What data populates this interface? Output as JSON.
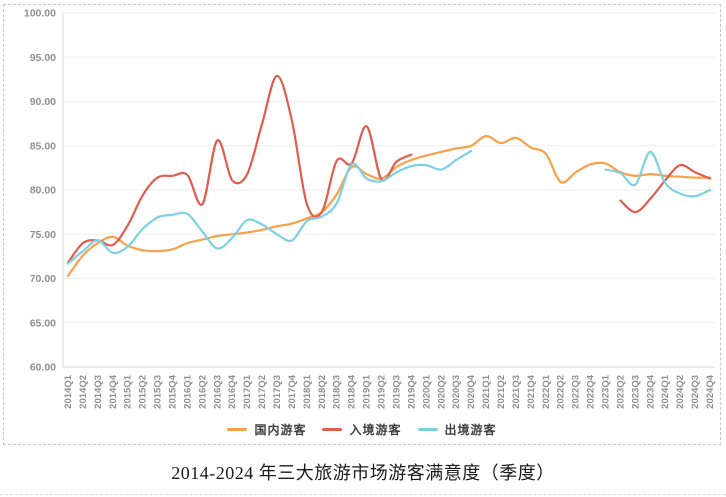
{
  "figure": {
    "caption": "2014-2024 年三大旅游市场游客满意度（季度）"
  },
  "chart_data": {
    "type": "line",
    "title": "2014-2024 年三大旅游市场游客满意度（季度）",
    "xlabel": "",
    "ylabel": "",
    "grid": true,
    "legend_position": "bottom",
    "line_style": "smooth",
    "x": [
      "2014Q1",
      "2014Q2",
      "2014Q3",
      "2014Q4",
      "2015Q1",
      "2015Q2",
      "2015Q3",
      "2015Q4",
      "2016Q1",
      "2016Q2",
      "2016Q3",
      "2016Q4",
      "2017Q1",
      "2017Q2",
      "2017Q3",
      "2017Q4",
      "2018Q1",
      "2018Q2",
      "2018Q3",
      "2018Q4",
      "2019Q1",
      "2019Q2",
      "2019Q3",
      "2019Q4",
      "2020Q1",
      "2020Q2",
      "2020Q3",
      "2020Q4",
      "2021Q1",
      "2021Q2",
      "2021Q3",
      "2021Q4",
      "2022Q1",
      "2022Q2",
      "2022Q3",
      "2022Q4",
      "2023Q1",
      "2023Q2",
      "2023Q3",
      "2023Q4",
      "2024Q1",
      "2024Q2",
      "2024Q3",
      "2024Q4"
    ],
    "y_axis": {
      "min": 60,
      "max": 100,
      "tick_step": 5,
      "tick_labels": [
        "100.00",
        "95.00",
        "90.00",
        "85.00",
        "80.00",
        "75.00",
        "70.00",
        "65.00",
        "60.00"
      ]
    },
    "series": [
      {
        "name": "国内游客",
        "color": "#F8A04A",
        "values": [
          70.3,
          72.6,
          74.0,
          74.7,
          73.7,
          73.2,
          73.1,
          73.3,
          74.0,
          74.4,
          74.8,
          75.0,
          75.2,
          75.5,
          75.9,
          76.2,
          76.8,
          77.5,
          79.5,
          82.6,
          81.8,
          81.3,
          82.6,
          83.4,
          83.9,
          84.3,
          84.7,
          85.0,
          86.1,
          85.3,
          85.9,
          84.8,
          84.1,
          80.9,
          82.0,
          82.9,
          83.0,
          82.0,
          81.6,
          81.8,
          81.6,
          81.5,
          81.4,
          81.4
        ]
      },
      {
        "name": "入境游客",
        "color": "#E25C4D",
        "values": [
          71.8,
          74.0,
          74.3,
          73.8,
          76.0,
          79.4,
          81.4,
          81.6,
          81.7,
          78.4,
          85.6,
          81.1,
          81.8,
          87.5,
          92.9,
          87.8,
          78.4,
          77.5,
          83.3,
          83.0,
          87.2,
          81.2,
          83.2,
          84.0,
          null,
          null,
          null,
          null,
          null,
          null,
          null,
          null,
          null,
          null,
          null,
          null,
          null,
          78.8,
          77.5,
          79.0,
          81.1,
          82.8,
          82.0,
          81.3
        ]
      },
      {
        "name": "出境游客",
        "color": "#7ED0E4",
        "values": [
          71.7,
          73.1,
          74.3,
          72.9,
          73.6,
          75.6,
          76.9,
          77.2,
          77.3,
          75.3,
          73.4,
          74.6,
          76.6,
          76.1,
          75.0,
          74.3,
          76.5,
          77.0,
          78.5,
          82.9,
          81.3,
          81.0,
          82.0,
          82.7,
          82.8,
          82.3,
          83.4,
          84.4,
          null,
          null,
          null,
          null,
          null,
          null,
          null,
          null,
          82.3,
          81.9,
          80.6,
          84.3,
          80.8,
          79.6,
          79.3,
          80.0
        ]
      }
    ]
  }
}
